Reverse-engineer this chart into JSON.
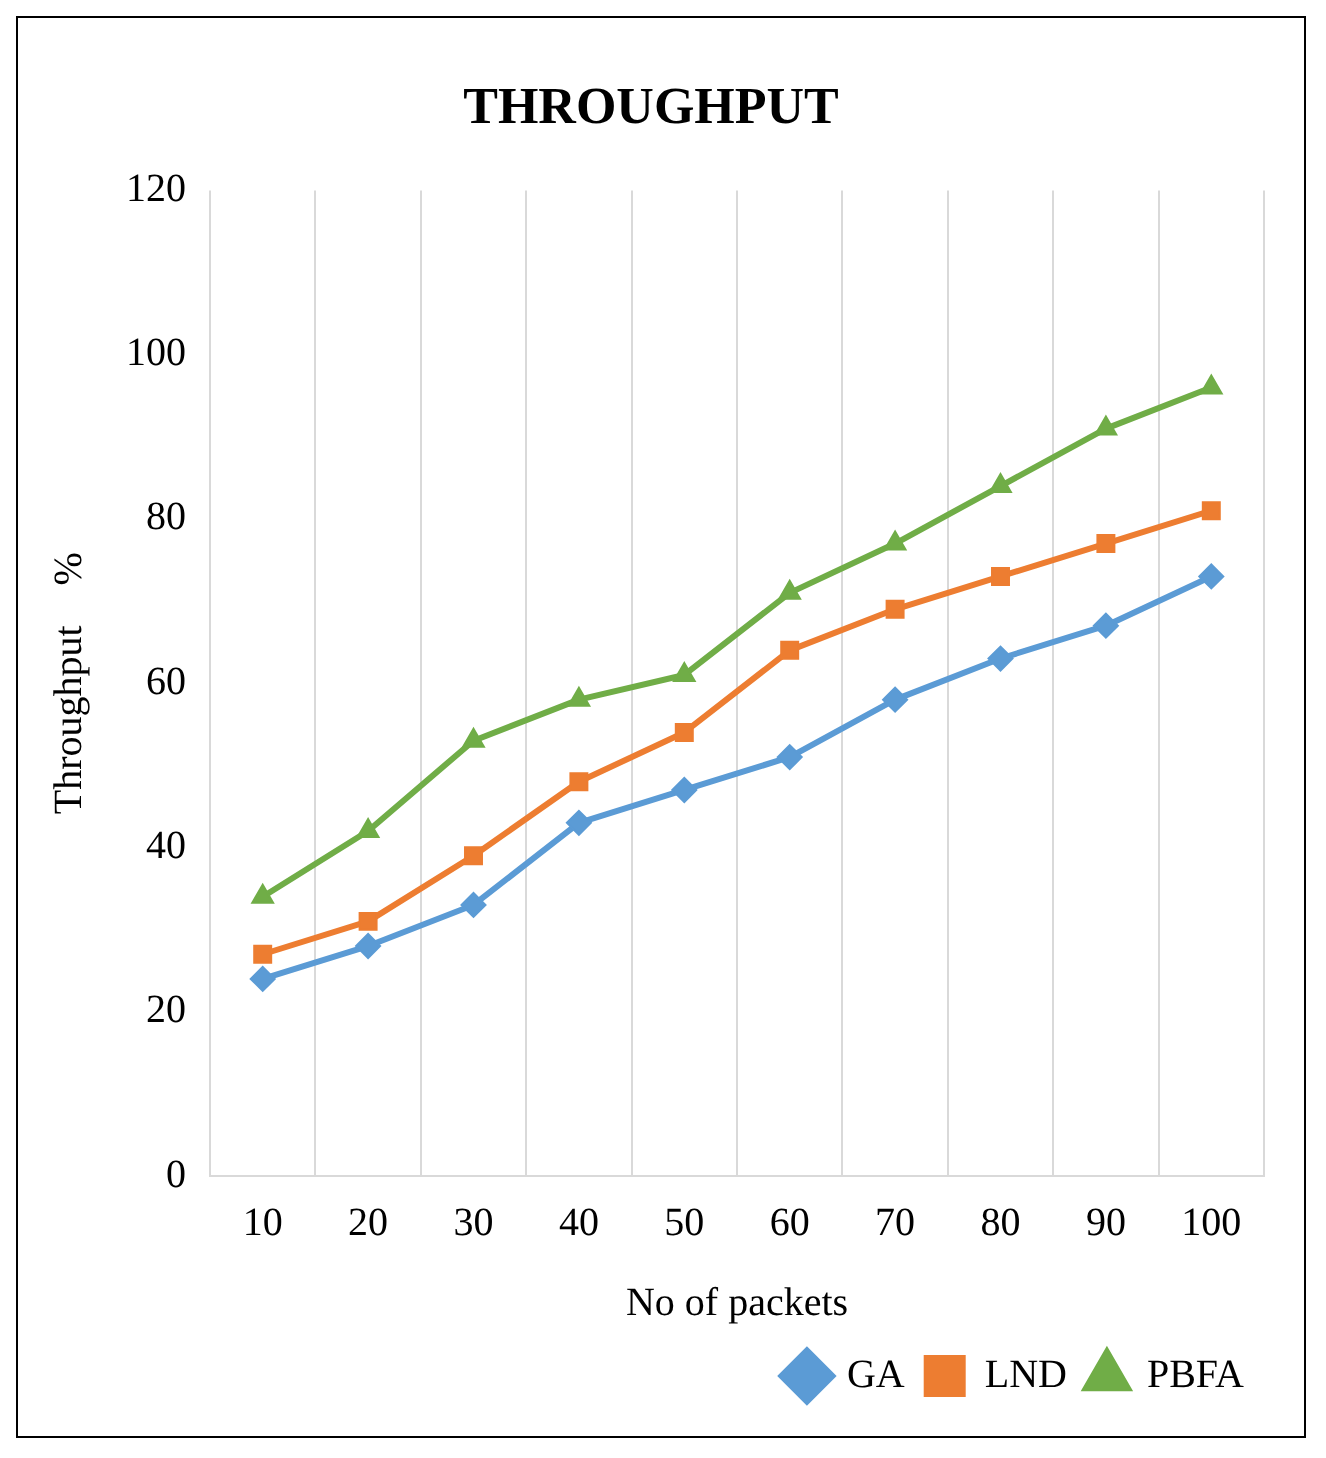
{
  "chart_data": {
    "type": "line",
    "title": "THROUGHPUT",
    "xlabel": "No of packets",
    "ylabel": "Throughput    %",
    "categories": [
      "10",
      "20",
      "30",
      "40",
      "50",
      "60",
      "70",
      "80",
      "90",
      "100"
    ],
    "series": [
      {
        "name": "GA",
        "color": "#5b9bd5",
        "marker": "diamond",
        "values": [
          24,
          28,
          33,
          43,
          47,
          51,
          58,
          63,
          67,
          73
        ]
      },
      {
        "name": "LND",
        "color": "#ed7d31",
        "marker": "square",
        "values": [
          27,
          31,
          39,
          48,
          54,
          64,
          69,
          73,
          77,
          81
        ]
      },
      {
        "name": "PBFA",
        "color": "#70ad47",
        "marker": "triangle",
        "values": [
          34,
          42,
          53,
          58,
          61,
          71,
          77,
          84,
          91,
          96
        ]
      }
    ],
    "ylim": [
      0,
      120
    ],
    "yticks": [
      0,
      20,
      40,
      60,
      80,
      100,
      120
    ],
    "grid": "x",
    "legend": "bottom right"
  }
}
